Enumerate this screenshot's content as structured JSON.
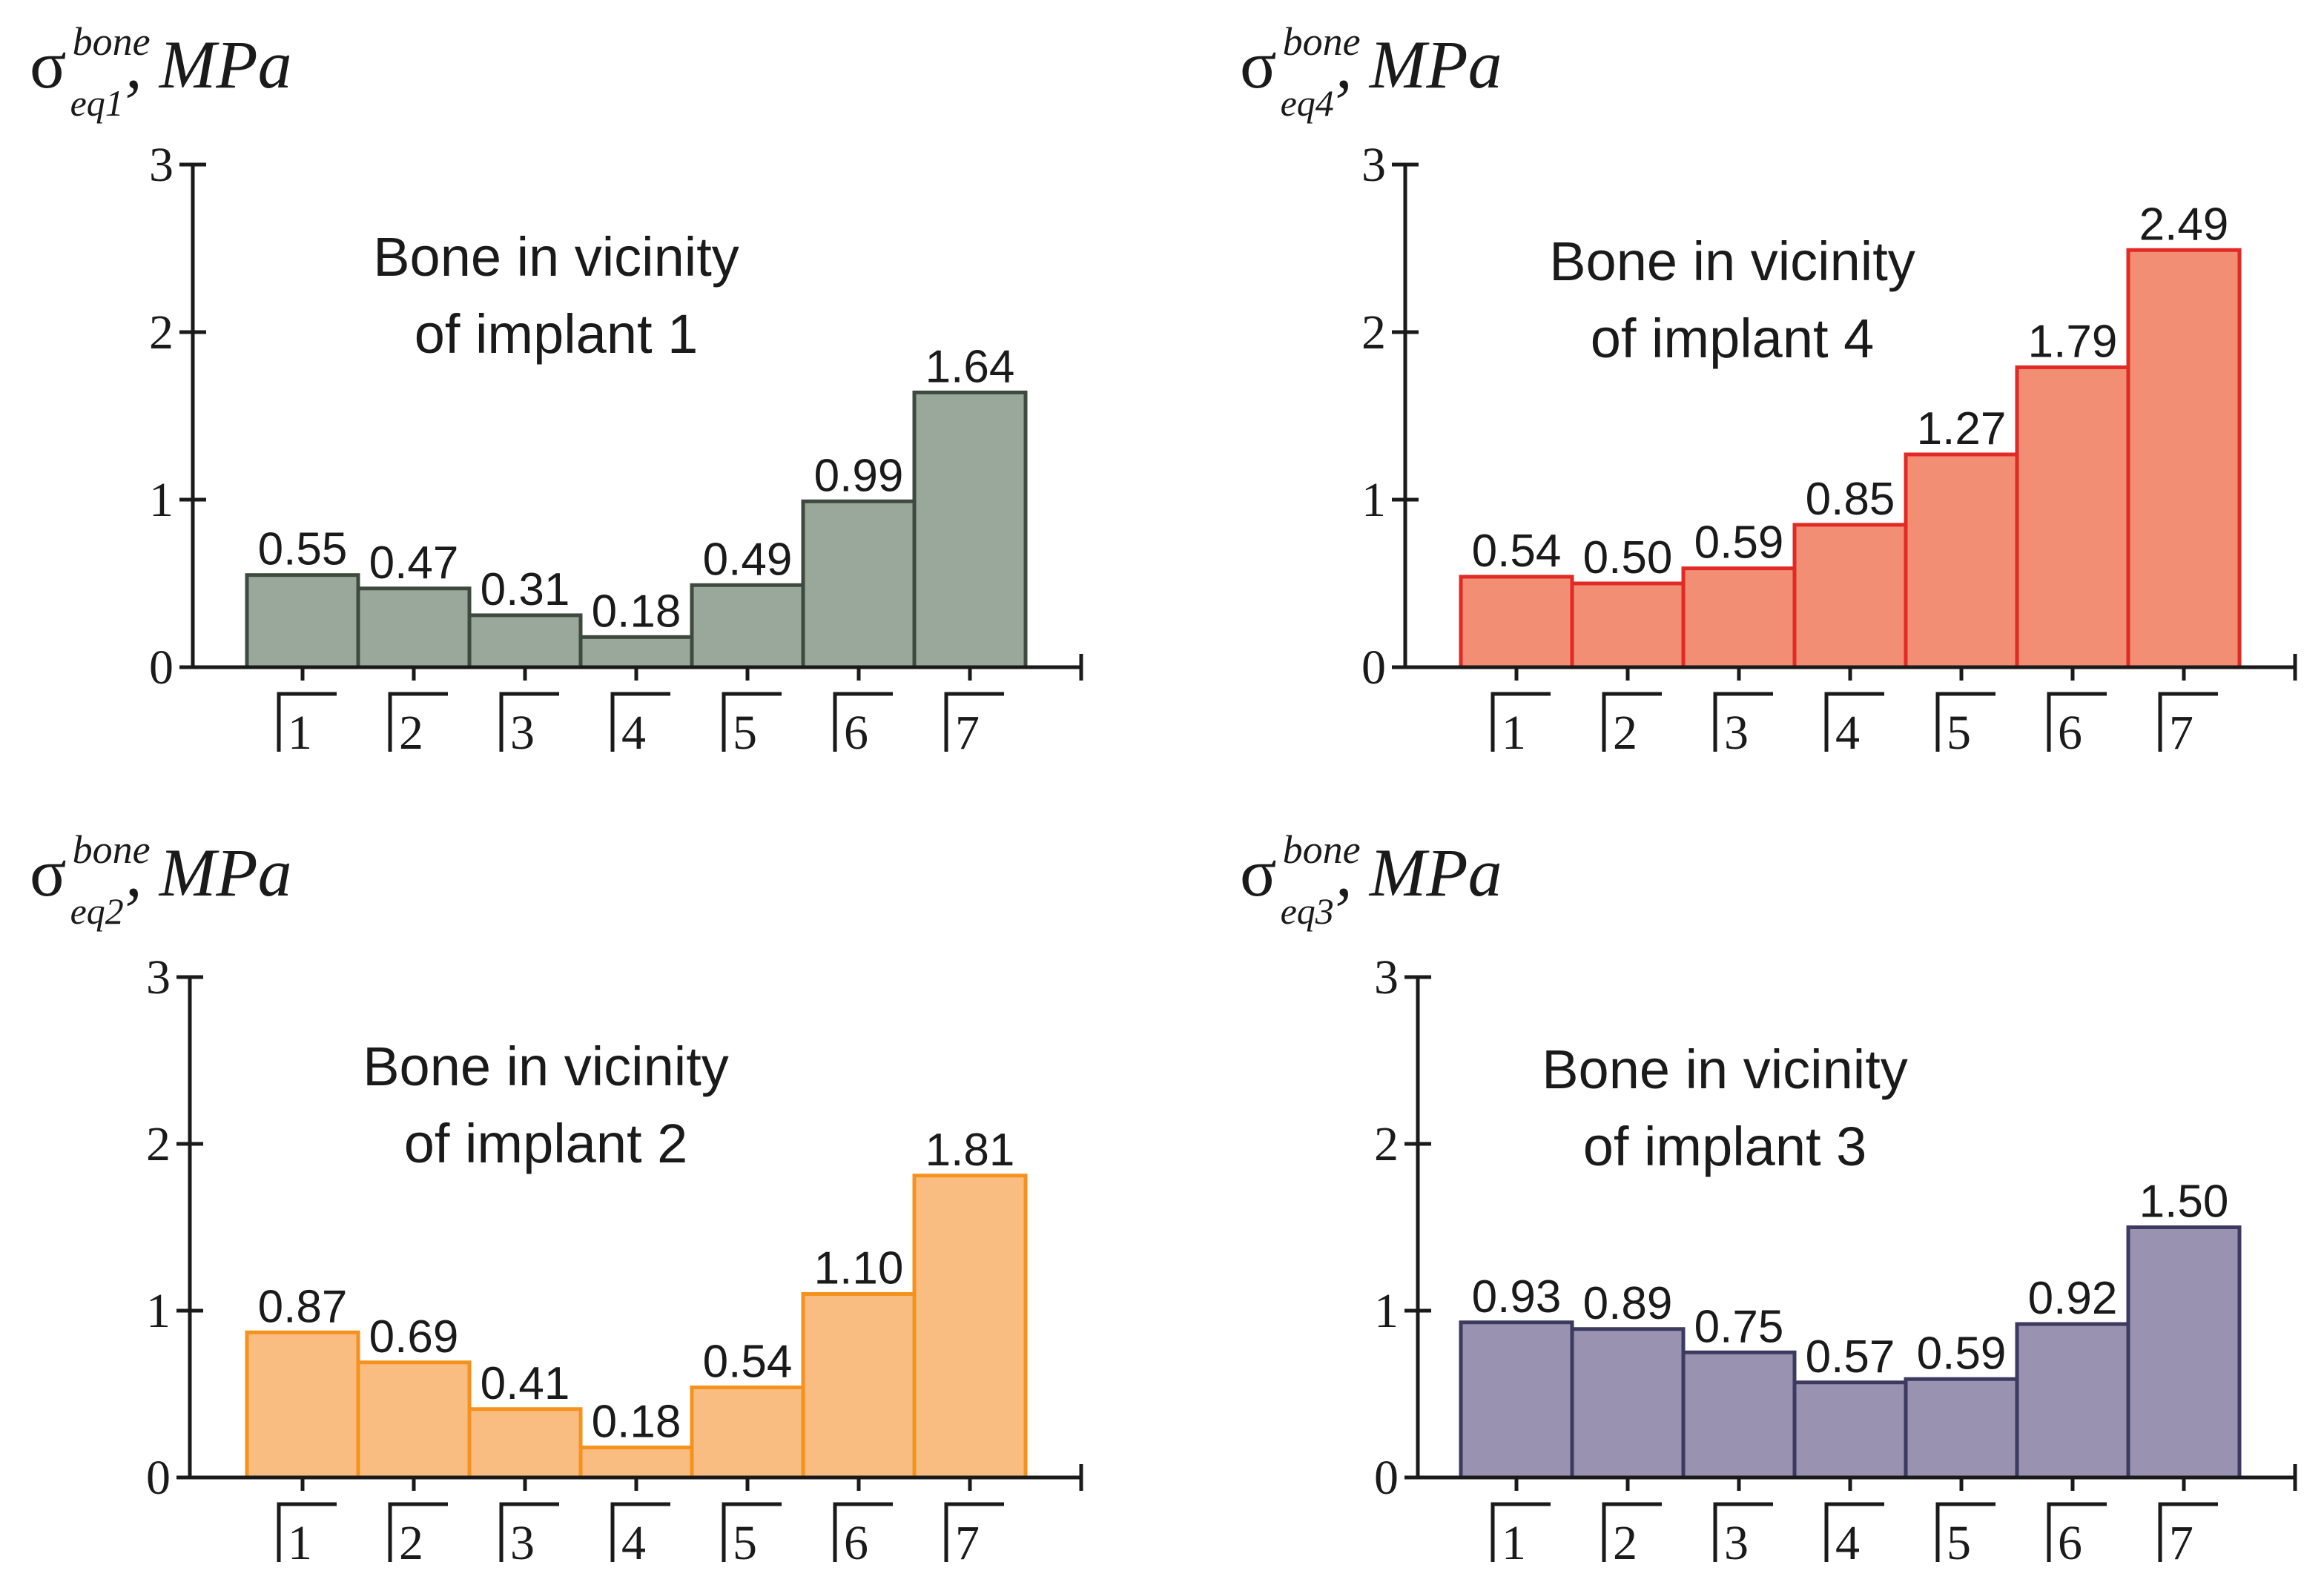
{
  "chart_data": [
    {
      "id": "implant1",
      "type": "bar",
      "y_symbol": "σ",
      "y_superscript": "bone",
      "y_subscript": "eq1",
      "y_unit": ", MPa",
      "title_lines": [
        "Bone in vicinity",
        "of implant 1"
      ],
      "categories": [
        "1",
        "2",
        "3",
        "4",
        "5",
        "6",
        "7"
      ],
      "values": [
        0.55,
        0.47,
        0.31,
        0.18,
        0.49,
        0.99,
        1.64
      ],
      "labels": [
        "0.55",
        "0.47",
        "0.31",
        "0.18",
        "0.49",
        "0.99",
        "1.64"
      ],
      "yticks": [
        "0",
        "1",
        "2",
        "3"
      ],
      "ylim": [
        0,
        3
      ],
      "fill": "#9aa89b",
      "stroke": "#3e4a3f"
    },
    {
      "id": "implant4",
      "type": "bar",
      "y_symbol": "σ",
      "y_superscript": "bone",
      "y_subscript": "eq4",
      "y_unit": ", MPa",
      "title_lines": [
        "Bone in vicinity",
        "of implant 4"
      ],
      "categories": [
        "1",
        "2",
        "3",
        "4",
        "5",
        "6",
        "7"
      ],
      "values": [
        0.54,
        0.5,
        0.59,
        0.85,
        1.27,
        1.79,
        2.49
      ],
      "labels": [
        "0.54",
        "0.50",
        "0.59",
        "0.85",
        "1.27",
        "1.79",
        "2.49"
      ],
      "yticks": [
        "0",
        "1",
        "2",
        "3"
      ],
      "ylim": [
        0,
        3
      ],
      "fill": "#f28e74",
      "stroke": "#e12a25"
    },
    {
      "id": "implant2",
      "type": "bar",
      "y_symbol": "σ",
      "y_superscript": "bone",
      "y_subscript": "eq2",
      "y_unit": ", MPa",
      "title_lines": [
        "Bone in vicinity",
        "of implant 2"
      ],
      "categories": [
        "1",
        "2",
        "3",
        "4",
        "5",
        "6",
        "7"
      ],
      "values": [
        0.87,
        0.69,
        0.41,
        0.18,
        0.54,
        1.1,
        1.81
      ],
      "labels": [
        "0.87",
        "0.69",
        "0.41",
        "0.18",
        "0.54",
        "1.10",
        "1.81"
      ],
      "yticks": [
        "0",
        "1",
        "2",
        "3"
      ],
      "ylim": [
        0,
        3
      ],
      "fill": "#f9bd82",
      "stroke": "#f5921e"
    },
    {
      "id": "implant3",
      "type": "bar",
      "y_symbol": "σ",
      "y_superscript": "bone",
      "y_subscript": "eq3",
      "y_unit": ", MPa",
      "title_lines": [
        "Bone in vicinity",
        "of implant 3"
      ],
      "categories": [
        "1",
        "2",
        "3",
        "4",
        "5",
        "6",
        "7"
      ],
      "values": [
        0.93,
        0.89,
        0.75,
        0.57,
        0.59,
        0.92,
        1.5
      ],
      "labels": [
        "0.93",
        "0.89",
        "0.75",
        "0.57",
        "0.59",
        "0.92",
        "1.50"
      ],
      "yticks": [
        "0",
        "1",
        "2",
        "3"
      ],
      "ylim": [
        0,
        3
      ],
      "fill": "#9992b0",
      "stroke": "#3c3a60"
    }
  ]
}
